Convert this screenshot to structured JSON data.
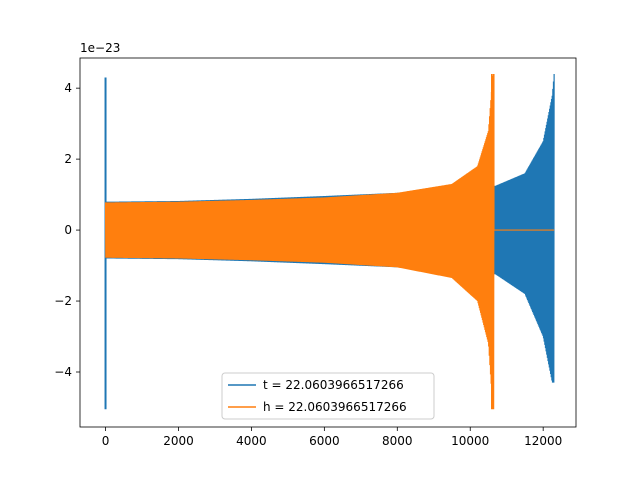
{
  "chart_data": {
    "type": "line",
    "title": "",
    "xlabel": "",
    "ylabel": "",
    "y_scale_label": "1e−23",
    "xlim": [
      -700,
      12900
    ],
    "ylim": [
      -5.55,
      4.85
    ],
    "x_ticks": [
      0,
      2000,
      4000,
      6000,
      8000,
      10000,
      12000
    ],
    "x_tick_labels": [
      "0",
      "2000",
      "4000",
      "6000",
      "8000",
      "10000",
      "12000"
    ],
    "y_ticks": [
      -4,
      -2,
      0,
      2,
      4
    ],
    "y_tick_labels": [
      "−4",
      "−2",
      "0",
      "2",
      "4"
    ],
    "grid": false,
    "legend_position": "lower-center",
    "series": [
      {
        "name": "t = 22.0603966517266",
        "color": "#1f77b4",
        "envelope_points": [
          [
            0,
            0.8
          ],
          [
            2000,
            0.82
          ],
          [
            4000,
            0.88
          ],
          [
            6000,
            0.96
          ],
          [
            8000,
            1.05
          ],
          [
            10000,
            1.15
          ],
          [
            10700,
            1.25
          ],
          [
            11500,
            1.6
          ],
          [
            12000,
            2.5
          ],
          [
            12250,
            3.8
          ],
          [
            12300,
            4.4
          ]
        ],
        "lower_envelope_points": [
          [
            0,
            -0.8
          ],
          [
            2000,
            -0.82
          ],
          [
            4000,
            -0.88
          ],
          [
            6000,
            -0.96
          ],
          [
            8000,
            -1.05
          ],
          [
            10000,
            -1.15
          ],
          [
            10700,
            -1.25
          ],
          [
            11500,
            -1.8
          ],
          [
            12000,
            -3.0
          ],
          [
            12250,
            -4.3
          ]
        ],
        "initial_spike": {
          "x": 0,
          "max": 4.3,
          "min": -5.05
        },
        "end_x": 12300
      },
      {
        "name": "h = 22.0603966517266",
        "color": "#ff7f0e",
        "envelope_points": [
          [
            0,
            0.78
          ],
          [
            2000,
            0.8
          ],
          [
            4000,
            0.85
          ],
          [
            6000,
            0.92
          ],
          [
            8000,
            1.05
          ],
          [
            9500,
            1.3
          ],
          [
            10200,
            1.8
          ],
          [
            10500,
            2.8
          ],
          [
            10620,
            4.4
          ]
        ],
        "lower_envelope_points": [
          [
            0,
            -0.78
          ],
          [
            2000,
            -0.8
          ],
          [
            4000,
            -0.85
          ],
          [
            6000,
            -0.92
          ],
          [
            8000,
            -1.05
          ],
          [
            9500,
            -1.35
          ],
          [
            10200,
            -2.0
          ],
          [
            10500,
            -3.2
          ],
          [
            10620,
            -5.05
          ]
        ],
        "merger_x": 10650,
        "flat_until_x": 12300,
        "end_x": 12300
      }
    ]
  }
}
